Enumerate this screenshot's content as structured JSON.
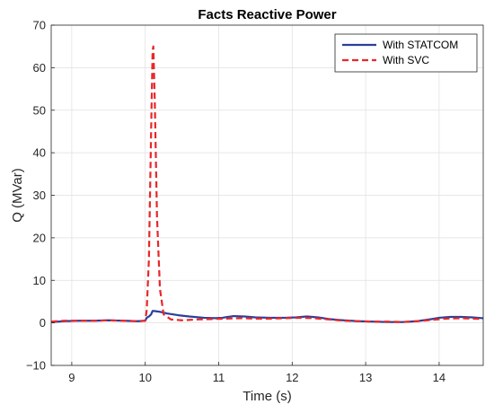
{
  "chart_data": {
    "type": "line",
    "title": "Facts Reactive Power",
    "xlabel": "Time (s)",
    "ylabel": "Q (MVar)",
    "xlim": [
      8.72,
      14.6
    ],
    "ylim": [
      -10,
      70
    ],
    "xticks": [
      9,
      10,
      11,
      12,
      13,
      14
    ],
    "yticks": [
      -10,
      0,
      10,
      20,
      30,
      40,
      50,
      60,
      70
    ],
    "grid": true,
    "legend_position": "top-right",
    "series": [
      {
        "name": "With STATCOM",
        "color": "#2b3f9a",
        "style": "solid",
        "x": [
          8.72,
          8.9,
          9.1,
          9.3,
          9.5,
          9.7,
          9.9,
          10.0,
          10.02,
          10.05,
          10.08,
          10.1,
          10.12,
          10.2,
          10.3,
          10.45,
          10.6,
          10.8,
          10.95,
          11.05,
          11.2,
          11.35,
          11.5,
          11.7,
          11.9,
          12.05,
          12.2,
          12.35,
          12.5,
          12.7,
          12.9,
          13.1,
          13.3,
          13.5,
          13.7,
          13.9,
          14.0,
          14.15,
          14.3,
          14.45,
          14.6
        ],
        "y": [
          0.2,
          0.4,
          0.5,
          0.5,
          0.6,
          0.5,
          0.4,
          0.5,
          1.2,
          1.5,
          2.0,
          2.8,
          2.8,
          2.6,
          2.2,
          1.8,
          1.5,
          1.2,
          1.1,
          1.2,
          1.6,
          1.5,
          1.3,
          1.2,
          1.2,
          1.3,
          1.5,
          1.3,
          0.9,
          0.6,
          0.4,
          0.3,
          0.2,
          0.2,
          0.4,
          0.9,
          1.2,
          1.4,
          1.4,
          1.3,
          1.1
        ]
      },
      {
        "name": "With SVC",
        "color": "#e8272a",
        "style": "dashed",
        "x": [
          8.72,
          8.9,
          9.1,
          9.3,
          9.5,
          9.7,
          9.9,
          10.0,
          10.02,
          10.05,
          10.08,
          10.1,
          10.11,
          10.13,
          10.16,
          10.2,
          10.25,
          10.35,
          10.5,
          10.7,
          10.9,
          11.1,
          11.3,
          11.5,
          11.7,
          11.9,
          12.1,
          12.3,
          12.5,
          12.7,
          12.9,
          13.1,
          13.3,
          13.5,
          13.7,
          13.9,
          14.1,
          14.3,
          14.45,
          14.6
        ],
        "y": [
          0.3,
          0.5,
          0.5,
          0.5,
          0.6,
          0.5,
          0.4,
          0.5,
          3.0,
          15.0,
          45.0,
          64.0,
          65.0,
          52.0,
          25.0,
          8.0,
          2.0,
          0.8,
          0.6,
          0.8,
          0.9,
          1.0,
          1.1,
          1.0,
          1.0,
          1.1,
          1.2,
          1.1,
          0.8,
          0.5,
          0.4,
          0.3,
          0.3,
          0.2,
          0.4,
          0.7,
          1.0,
          1.1,
          1.0,
          0.9
        ]
      }
    ]
  }
}
